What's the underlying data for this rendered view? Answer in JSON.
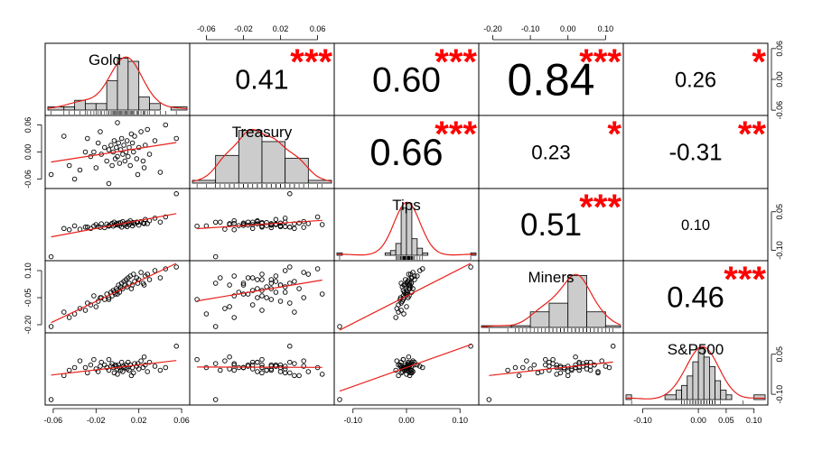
{
  "chart_data": {
    "type": "scatter-matrix",
    "title": "",
    "variables": [
      "Gold",
      "Treasury",
      "Tips",
      "Miners",
      "S&P500"
    ],
    "ranges": [
      [
        -0.065,
        0.065
      ],
      [
        -0.075,
        0.075
      ],
      [
        -0.13,
        0.13
      ],
      [
        -0.23,
        0.14
      ],
      [
        -0.13,
        0.12
      ]
    ],
    "correlations": [
      {
        "row": 0,
        "col": 1,
        "value": "0.41",
        "stars": "***"
      },
      {
        "row": 0,
        "col": 2,
        "value": "0.60",
        "stars": "***"
      },
      {
        "row": 0,
        "col": 3,
        "value": "0.84",
        "stars": "***"
      },
      {
        "row": 0,
        "col": 4,
        "value": "0.26",
        "stars": "*"
      },
      {
        "row": 1,
        "col": 2,
        "value": "0.66",
        "stars": "***"
      },
      {
        "row": 1,
        "col": 3,
        "value": "0.23",
        "stars": "*"
      },
      {
        "row": 1,
        "col": 4,
        "value": "-0.31",
        "stars": "**"
      },
      {
        "row": 2,
        "col": 3,
        "value": "0.51",
        "stars": "***"
      },
      {
        "row": 2,
        "col": 4,
        "value": "0.10",
        "stars": ""
      },
      {
        "row": 3,
        "col": 4,
        "value": "0.46",
        "stars": "***"
      }
    ],
    "axes": {
      "top": [
        {
          "col": 1,
          "ticks": [
            "-0.06",
            "-0.02",
            "0.02",
            "0.06"
          ],
          "values": [
            -0.06,
            -0.02,
            0.02,
            0.06
          ]
        },
        {
          "col": 3,
          "ticks": [
            "-0.20",
            "-0.10",
            "0.00",
            "0.10"
          ],
          "values": [
            -0.2,
            -0.1,
            0.0,
            0.1
          ]
        }
      ],
      "bottom": [
        {
          "col": 0,
          "ticks": [
            "-0.06",
            "-0.02",
            "0.02",
            "0.06"
          ],
          "values": [
            -0.06,
            -0.02,
            0.02,
            0.06
          ]
        },
        {
          "col": 2,
          "ticks": [
            "-0.10",
            "0.00",
            "0.10"
          ],
          "values": [
            -0.1,
            0.0,
            0.1
          ]
        },
        {
          "col": 4,
          "ticks": [
            "-0.10",
            "0.00",
            "0.05",
            "0.10"
          ],
          "values": [
            -0.1,
            0.0,
            0.05,
            0.1
          ]
        }
      ],
      "left": [
        {
          "row": 1,
          "ticks": [
            "-0.06",
            "0.00",
            "0.06"
          ],
          "values": [
            -0.06,
            0.0,
            0.06
          ]
        },
        {
          "row": 3,
          "ticks": [
            "-0.20",
            "-0.05",
            "0.10"
          ],
          "values": [
            -0.2,
            -0.05,
            0.1
          ]
        }
      ],
      "right": [
        {
          "row": 0,
          "ticks": [
            "-0.06",
            "0.00",
            "0.06"
          ],
          "values": [
            -0.06,
            0.0,
            0.06
          ]
        },
        {
          "row": 2,
          "ticks": [
            "-0.10",
            "0.05"
          ],
          "values": [
            -0.1,
            0.05
          ]
        },
        {
          "row": 4,
          "ticks": [
            "-0.10",
            "0.05"
          ],
          "values": [
            -0.1,
            0.05
          ]
        }
      ]
    },
    "histograms": [
      {
        "var": "Gold",
        "bins": [
          -0.065,
          -0.05,
          -0.04,
          -0.03,
          -0.02,
          -0.01,
          0.0,
          0.01,
          0.02,
          0.03,
          0.04,
          0.05,
          0.065
        ],
        "counts": [
          1,
          1,
          3,
          2,
          2,
          9,
          16,
          15,
          4,
          2,
          0,
          1
        ]
      },
      {
        "var": "Treasury",
        "bins": [
          -0.075,
          -0.05,
          -0.025,
          0.0,
          0.025,
          0.05,
          0.075
        ],
        "counts": [
          1,
          10,
          19,
          15,
          9,
          1
        ]
      },
      {
        "var": "Tips",
        "bins": [
          -0.13,
          -0.12,
          -0.04,
          -0.03,
          -0.02,
          -0.01,
          0.0,
          0.01,
          0.02,
          0.03,
          0.04,
          0.12,
          0.13
        ],
        "counts": [
          1,
          0,
          1,
          2,
          5,
          20,
          22,
          7,
          3,
          1,
          0,
          1
        ]
      },
      {
        "var": "Miners",
        "bins": [
          -0.23,
          -0.15,
          -0.1,
          -0.05,
          0.0,
          0.05,
          0.1,
          0.14
        ],
        "counts": [
          1,
          1,
          9,
          14,
          30,
          9,
          1
        ]
      },
      {
        "var": "S&P500",
        "bins": [
          -0.13,
          -0.12,
          -0.1,
          -0.06,
          -0.04,
          -0.03,
          -0.02,
          -0.01,
          0.0,
          0.01,
          0.02,
          0.03,
          0.04,
          0.05,
          0.06,
          0.1,
          0.12
        ],
        "counts": [
          1,
          0,
          0,
          1,
          2,
          3,
          5,
          8,
          11,
          9,
          7,
          4,
          2,
          1,
          0,
          1
        ]
      }
    ],
    "observations": [
      [
        0.055,
        0.03,
        0.12,
        0.12,
        0.08
      ],
      [
        -0.062,
        -0.05,
        -0.125,
        -0.21,
        -0.12
      ],
      [
        -0.045,
        -0.03,
        -0.02,
        -0.16,
        -0.01
      ],
      [
        -0.04,
        -0.06,
        -0.005,
        -0.14,
        0.0
      ],
      [
        -0.025,
        -0.01,
        -0.015,
        -0.09,
        0.01
      ],
      [
        -0.03,
        0.0,
        -0.01,
        -0.12,
        0.0
      ],
      [
        -0.02,
        -0.035,
        0.0,
        -0.1,
        -0.005
      ],
      [
        -0.018,
        0.02,
        -0.008,
        -0.07,
        -0.015
      ],
      [
        -0.015,
        -0.005,
        0.003,
        -0.05,
        0.02
      ],
      [
        -0.012,
        0.01,
        -0.012,
        -0.06,
        0.01
      ],
      [
        -0.01,
        -0.02,
        0.002,
        -0.03,
        0.0
      ],
      [
        -0.008,
        0.005,
        -0.004,
        -0.05,
        -0.01
      ],
      [
        -0.006,
        0.015,
        0.0,
        -0.02,
        0.005
      ],
      [
        -0.005,
        -0.03,
        0.005,
        -0.04,
        0.015
      ],
      [
        -0.004,
        0.0,
        -0.006,
        -0.01,
        0.0
      ],
      [
        -0.003,
        0.025,
        0.01,
        -0.02,
        -0.02
      ],
      [
        -0.002,
        -0.015,
        -0.002,
        -0.03,
        0.01
      ],
      [
        -0.001,
        0.01,
        0.004,
        0.0,
        0.005
      ],
      [
        0.0,
        -0.01,
        0.0,
        -0.01,
        -0.005
      ],
      [
        0.001,
        0.02,
        0.006,
        0.02,
        0.01
      ],
      [
        0.002,
        -0.025,
        -0.004,
        -0.02,
        0.0
      ],
      [
        0.003,
        0.005,
        0.008,
        0.01,
        -0.01
      ],
      [
        0.004,
        0.03,
        -0.01,
        0.03,
        0.02
      ],
      [
        0.005,
        -0.005,
        0.012,
        0.0,
        -0.015
      ],
      [
        0.006,
        0.015,
        0.002,
        0.04,
        0.005
      ],
      [
        0.007,
        -0.02,
        -0.003,
        0.02,
        0.0
      ],
      [
        0.008,
        0.0,
        0.005,
        0.05,
        0.01
      ],
      [
        0.009,
        0.025,
        -0.008,
        0.01,
        -0.005
      ],
      [
        0.01,
        -0.01,
        0.01,
        0.06,
        0.02
      ],
      [
        0.011,
        0.01,
        0.0,
        0.03,
        -0.01
      ],
      [
        0.012,
        -0.03,
        0.015,
        0.07,
        0.01
      ],
      [
        0.014,
        0.02,
        -0.005,
        0.02,
        0.0
      ],
      [
        0.015,
        0.0,
        0.008,
        0.08,
        -0.02
      ],
      [
        0.016,
        0.035,
        0.003,
        0.04,
        0.015
      ],
      [
        0.018,
        -0.015,
        0.01,
        0.06,
        0.005
      ],
      [
        0.02,
        0.01,
        -0.002,
        0.05,
        -0.005
      ],
      [
        0.022,
        0.045,
        0.012,
        0.09,
        0.025
      ],
      [
        0.024,
        -0.02,
        0.006,
        0.03,
        0.0
      ],
      [
        0.026,
        0.015,
        0.02,
        0.07,
        0.01
      ],
      [
        0.028,
        0.05,
        0.004,
        0.08,
        -0.015
      ],
      [
        0.03,
        -0.005,
        0.015,
        0.05,
        0.02
      ],
      [
        0.035,
        0.025,
        0.025,
        0.1,
        0.005
      ],
      [
        -0.035,
        -0.04,
        -0.018,
        -0.11,
        0.025
      ],
      [
        -0.028,
        0.03,
        -0.01,
        -0.08,
        -0.02
      ],
      [
        0.04,
        -0.045,
        0.01,
        0.06,
        -0.01
      ],
      [
        -0.022,
        0.0,
        -0.006,
        -0.04,
        0.03
      ],
      [
        0.045,
        0.06,
        0.03,
        0.11,
        0.0
      ],
      [
        -0.05,
        0.035,
        -0.015,
        -0.13,
        -0.03
      ],
      [
        0.025,
        -0.035,
        0.004,
        0.02,
        0.04
      ],
      [
        0.0,
        0.065,
        0.0,
        -0.03,
        -0.025
      ],
      [
        -0.008,
        -0.07,
        -0.006,
        -0.06,
        0.03
      ],
      [
        0.013,
        0.04,
        0.006,
        0.0,
        -0.03
      ],
      [
        0.019,
        -0.05,
        0.009,
        0.03,
        0.015
      ],
      [
        -0.016,
        0.045,
        -0.011,
        -0.05,
        0.005
      ]
    ]
  }
}
